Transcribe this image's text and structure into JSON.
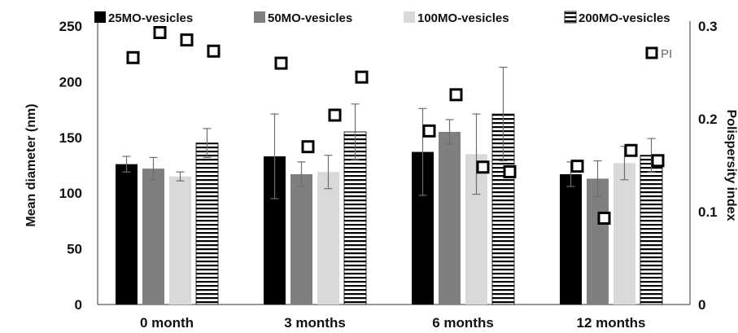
{
  "chart_data": {
    "type": "bar",
    "categories": [
      "0 month",
      "3 months",
      "6 months",
      "12 months"
    ],
    "series": [
      {
        "name": "25MO-vesicles",
        "values": [
          126,
          133,
          137,
          117
        ],
        "errors": [
          7,
          38,
          39,
          11
        ],
        "color": "#000000",
        "pattern": "solid"
      },
      {
        "name": "50MO-vesicles",
        "values": [
          122,
          117,
          155,
          113
        ],
        "errors": [
          10,
          11,
          11,
          16
        ],
        "color": "#7f7f7f",
        "pattern": "solid"
      },
      {
        "name": "100MO-vesicles",
        "values": [
          115,
          119,
          135,
          127
        ],
        "errors": [
          4,
          15,
          36,
          15
        ],
        "color": "#d9d9d9",
        "pattern": "solid"
      },
      {
        "name": "200MO-vesicles",
        "values": [
          145,
          155,
          171,
          134
        ],
        "errors": [
          13,
          25,
          42,
          15
        ],
        "color": "#000000",
        "pattern": "horizontal-stripes"
      }
    ],
    "pi_series": {
      "name": "PI",
      "axis": "right",
      "values": [
        [
          0.266,
          0.293,
          0.285,
          0.273
        ],
        [
          0.26,
          0.17,
          0.204,
          0.245
        ],
        [
          0.187,
          0.226,
          0.148,
          0.143
        ],
        [
          0.149,
          0.093,
          0.166,
          0.155
        ]
      ]
    },
    "ylabel": "Mean diameter (nm)",
    "y2label": "Polispersity index",
    "ylim": [
      0,
      250
    ],
    "yticks": [
      "0",
      "50",
      "100",
      "150",
      "200",
      "250"
    ],
    "y2lim": [
      0,
      0.3
    ],
    "y2ticks": [
      "0",
      "0.1",
      "0.2",
      "0.3"
    ],
    "grid": false,
    "legend_position": "top"
  }
}
